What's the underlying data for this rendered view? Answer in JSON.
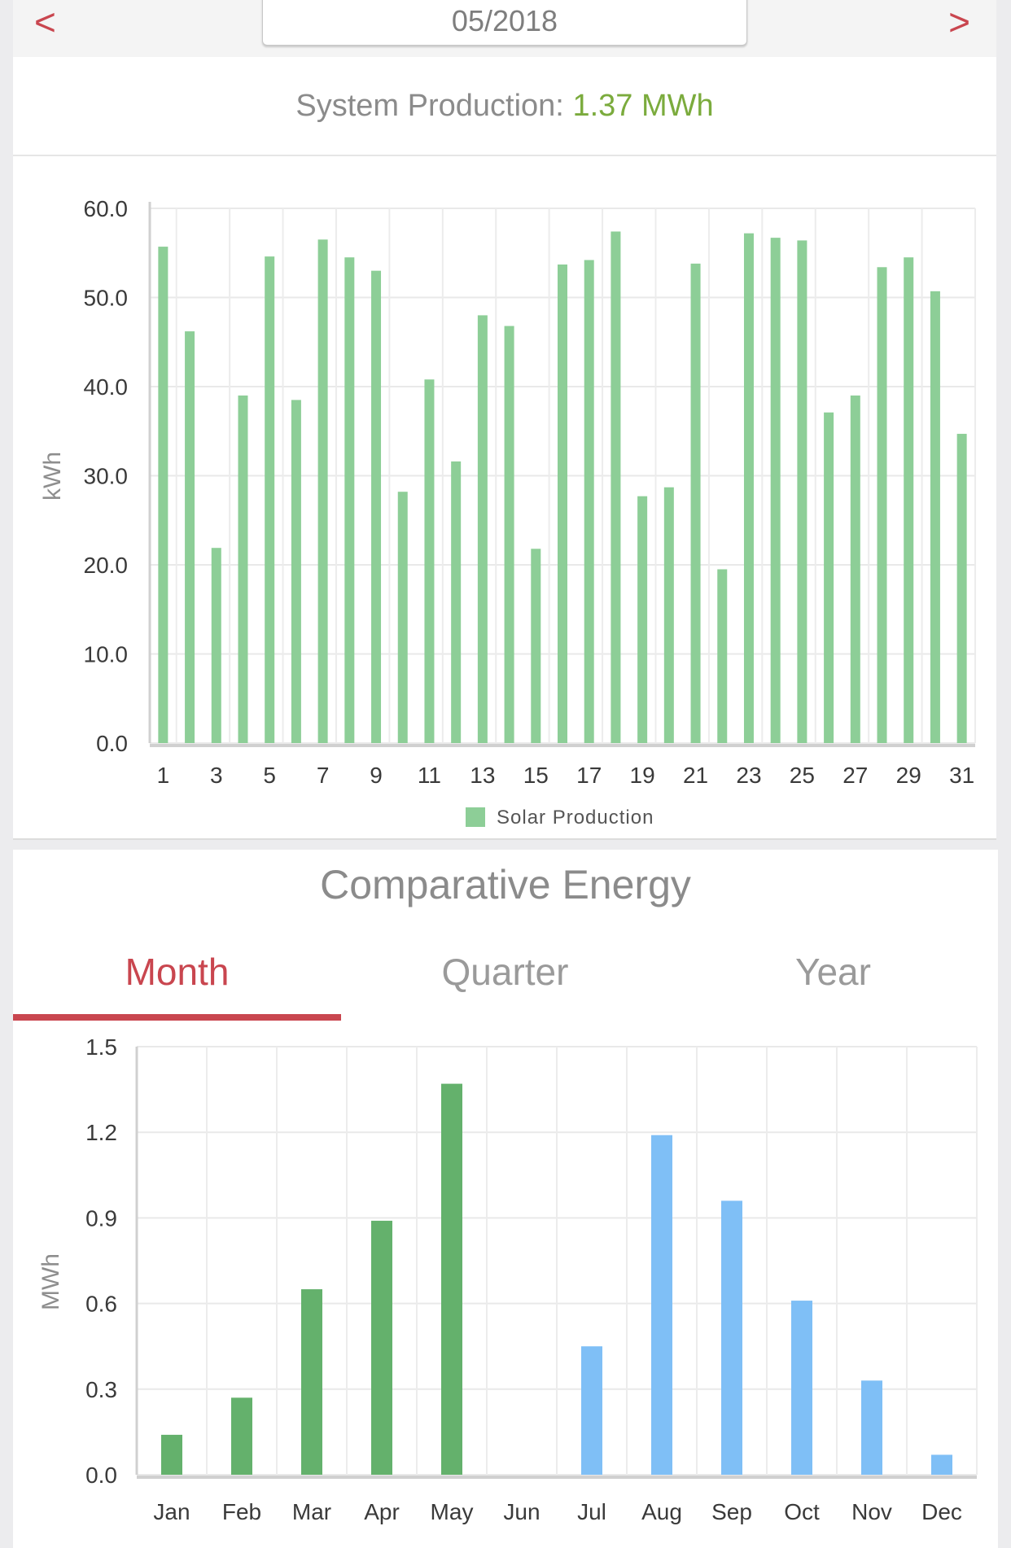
{
  "nav": {
    "prev": "<",
    "next": ">",
    "date": "05/2018"
  },
  "production": {
    "label": "System Production:",
    "value": "1.37 MWh",
    "value_color": "#7bab3d"
  },
  "comparative": {
    "title": "Comparative Energy",
    "tabs": [
      "Month",
      "Quarter",
      "Year"
    ],
    "active_tab": "Month"
  },
  "colors": {
    "accent": "#c9464f",
    "daily_bar": "#8dce97",
    "current_year_bar": "#64b16c",
    "prior_year_bar": "#7fbff6"
  },
  "chart_data": [
    {
      "type": "bar",
      "ylabel": "kWh",
      "ylim": [
        0,
        60
      ],
      "yticks": [
        "0.0",
        "10.0",
        "20.0",
        "30.0",
        "40.0",
        "50.0",
        "60.0"
      ],
      "categories": [
        "1",
        "2",
        "3",
        "4",
        "5",
        "6",
        "7",
        "8",
        "9",
        "10",
        "11",
        "12",
        "13",
        "14",
        "15",
        "16",
        "17",
        "18",
        "19",
        "20",
        "21",
        "22",
        "23",
        "24",
        "25",
        "26",
        "27",
        "28",
        "29",
        "30",
        "31"
      ],
      "xtick_labels": [
        "1",
        "3",
        "5",
        "7",
        "9",
        "11",
        "13",
        "15",
        "17",
        "19",
        "21",
        "23",
        "25",
        "27",
        "29",
        "31"
      ],
      "series": [
        {
          "name": "Solar Production",
          "values": [
            55.7,
            46.2,
            21.9,
            39.0,
            54.6,
            38.5,
            56.5,
            54.5,
            53.0,
            28.2,
            40.8,
            31.6,
            48.0,
            46.8,
            21.8,
            53.7,
            54.2,
            57.4,
            27.7,
            28.7,
            53.8,
            19.5,
            57.2,
            56.7,
            56.4,
            37.1,
            39.0,
            53.4,
            54.5,
            50.7,
            34.7
          ]
        }
      ],
      "legend": "bottom-center",
      "grid": true
    },
    {
      "type": "bar",
      "ylabel": "MWh",
      "ylim": [
        0,
        1.5
      ],
      "yticks": [
        "0.0",
        "0.3",
        "0.6",
        "0.9",
        "1.2",
        "1.5"
      ],
      "categories": [
        "Jan",
        "Feb",
        "Mar",
        "Apr",
        "May",
        "Jun",
        "Jul",
        "Aug",
        "Sep",
        "Oct",
        "Nov",
        "Dec"
      ],
      "values": [
        0.14,
        0.27,
        0.65,
        0.89,
        1.37,
        0,
        0.45,
        1.19,
        0.96,
        0.61,
        0.33,
        0.07
      ],
      "bar_colors": [
        "#64b16c",
        "#64b16c",
        "#64b16c",
        "#64b16c",
        "#64b16c",
        "#64b16c",
        "#7fbff6",
        "#7fbff6",
        "#7fbff6",
        "#7fbff6",
        "#7fbff6",
        "#7fbff6"
      ],
      "grid": true
    }
  ]
}
